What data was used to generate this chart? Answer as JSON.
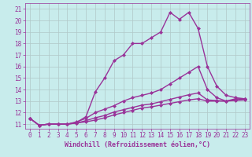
{
  "xlabel": "Windchill (Refroidissement éolien,°C)",
  "bg_color": "#c8ecec",
  "line_color": "#993399",
  "grid_color": "#b0c8c8",
  "xlim": [
    -0.5,
    23.5
  ],
  "ylim": [
    10.6,
    21.5
  ],
  "xticks": [
    0,
    1,
    2,
    3,
    4,
    5,
    6,
    7,
    8,
    9,
    10,
    11,
    12,
    13,
    14,
    15,
    16,
    17,
    18,
    19,
    20,
    21,
    22,
    23
  ],
  "yticks": [
    11,
    12,
    13,
    14,
    15,
    16,
    17,
    18,
    19,
    20,
    21
  ],
  "line1_x": [
    0,
    1,
    2,
    3,
    4,
    5,
    6,
    7,
    8,
    9,
    10,
    11,
    12,
    13,
    14,
    15,
    16,
    17,
    18,
    19,
    20,
    21,
    22,
    23
  ],
  "line1_y": [
    11.5,
    10.9,
    11.0,
    11.0,
    11.0,
    11.15,
    11.65,
    13.8,
    15.0,
    16.5,
    17.0,
    18.0,
    18.0,
    18.5,
    19.0,
    20.7,
    20.1,
    20.7,
    19.3,
    16.0,
    14.3,
    13.5,
    13.3,
    13.2
  ],
  "line2_x": [
    0,
    1,
    2,
    3,
    4,
    5,
    6,
    7,
    8,
    9,
    10,
    11,
    12,
    13,
    14,
    15,
    16,
    17,
    18,
    19,
    20,
    21,
    22,
    23
  ],
  "line2_y": [
    11.5,
    10.9,
    11.0,
    11.0,
    11.0,
    11.2,
    11.5,
    12.0,
    12.3,
    12.6,
    13.0,
    13.3,
    13.5,
    13.7,
    14.0,
    14.5,
    15.0,
    15.5,
    16.0,
    14.0,
    13.3,
    13.0,
    13.2,
    13.2
  ],
  "line3_x": [
    0,
    1,
    2,
    3,
    4,
    5,
    6,
    7,
    8,
    9,
    10,
    11,
    12,
    13,
    14,
    15,
    16,
    17,
    18,
    19,
    20,
    21,
    22,
    23
  ],
  "line3_y": [
    11.5,
    10.9,
    11.0,
    11.0,
    11.0,
    11.1,
    11.3,
    11.55,
    11.75,
    12.05,
    12.25,
    12.45,
    12.65,
    12.75,
    12.95,
    13.15,
    13.35,
    13.55,
    13.7,
    13.1,
    13.05,
    13.0,
    13.1,
    13.2
  ],
  "line4_x": [
    0,
    1,
    2,
    3,
    4,
    5,
    6,
    7,
    8,
    9,
    10,
    11,
    12,
    13,
    14,
    15,
    16,
    17,
    18,
    19,
    20,
    21,
    22,
    23
  ],
  "line4_y": [
    11.5,
    10.9,
    11.0,
    11.0,
    11.0,
    11.1,
    11.2,
    11.35,
    11.55,
    11.8,
    12.0,
    12.2,
    12.4,
    12.5,
    12.65,
    12.8,
    12.95,
    13.1,
    13.2,
    13.0,
    13.0,
    13.0,
    13.05,
    13.1
  ],
  "marker": "D",
  "markersize": 2,
  "linewidth": 1.0,
  "axis_fontsize": 6,
  "tick_fontsize": 5.5
}
